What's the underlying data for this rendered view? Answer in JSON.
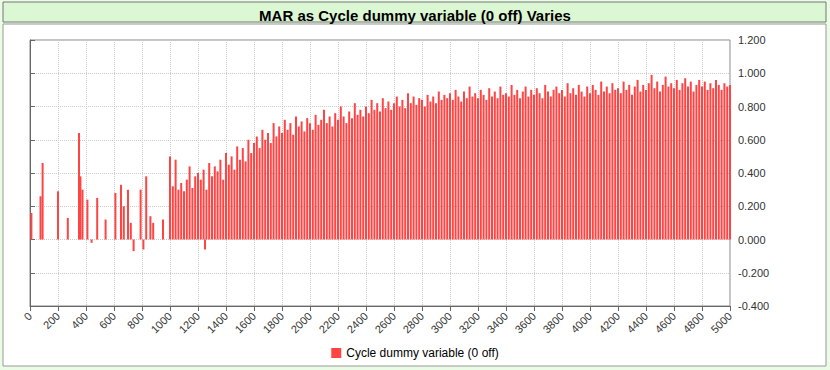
{
  "chart_data": {
    "type": "bar",
    "title": "MAR as Cycle dummy variable (0 off) Varies",
    "legend": "bottom",
    "grid": true,
    "xlim": [
      0,
      5000
    ],
    "xticks": [
      0,
      200,
      400,
      600,
      800,
      1000,
      1200,
      1400,
      1600,
      1800,
      2000,
      2200,
      2400,
      2600,
      2800,
      3000,
      3200,
      3400,
      3600,
      3800,
      4000,
      4200,
      4400,
      4600,
      4800,
      5000
    ],
    "ylim": [
      -0.4,
      1.2
    ],
    "yticks": [
      {
        "value": -0.4,
        "label": "-0.400"
      },
      {
        "value": -0.2,
        "label": "-0.200"
      },
      {
        "value": 0,
        "label": "0.000"
      },
      {
        "value": 0.2,
        "label": "0.200"
      },
      {
        "value": 0.4,
        "label": "0.400"
      },
      {
        "value": 0.6,
        "label": "0.600"
      },
      {
        "value": 0.8,
        "label": "0.800"
      },
      {
        "value": 1.0,
        "label": "1.000"
      },
      {
        "value": 1.2,
        "label": "1.200"
      }
    ],
    "series": [
      {
        "name": "Cycle dummy variable (0 off)",
        "color": "#ff4444",
        "x": [
          10,
          75,
          90,
          200,
          270,
          350,
          360,
          375,
          410,
          440,
          480,
          540,
          610,
          650,
          670,
          700,
          720,
          740,
          790,
          810,
          830,
          860,
          880,
          950,
          1000,
          1020,
          1040,
          1060,
          1080,
          1100,
          1120,
          1140,
          1160,
          1180,
          1200,
          1220,
          1240,
          1250,
          1260,
          1280,
          1300,
          1320,
          1340,
          1360,
          1380,
          1400,
          1420,
          1440,
          1460,
          1480,
          1500,
          1520,
          1540,
          1560,
          1580,
          1600,
          1620,
          1640,
          1660,
          1680,
          1700,
          1720,
          1740,
          1760,
          1780,
          1800,
          1820,
          1840,
          1860,
          1880,
          1900,
          1920,
          1940,
          1960,
          1980,
          2000,
          2020,
          2040,
          2060,
          2080,
          2100,
          2120,
          2140,
          2160,
          2180,
          2200,
          2220,
          2240,
          2260,
          2280,
          2300,
          2320,
          2340,
          2360,
          2380,
          2400,
          2420,
          2440,
          2460,
          2480,
          2500,
          2520,
          2540,
          2560,
          2580,
          2600,
          2620,
          2640,
          2660,
          2680,
          2700,
          2720,
          2740,
          2760,
          2780,
          2800,
          2820,
          2840,
          2860,
          2880,
          2900,
          2920,
          2940,
          2960,
          2980,
          3000,
          3020,
          3040,
          3060,
          3080,
          3100,
          3120,
          3140,
          3160,
          3180,
          3200,
          3220,
          3240,
          3260,
          3280,
          3300,
          3320,
          3340,
          3360,
          3380,
          3400,
          3420,
          3440,
          3460,
          3480,
          3500,
          3520,
          3540,
          3560,
          3580,
          3600,
          3620,
          3640,
          3660,
          3680,
          3700,
          3720,
          3740,
          3760,
          3780,
          3800,
          3820,
          3840,
          3860,
          3880,
          3900,
          3920,
          3940,
          3960,
          3980,
          4000,
          4020,
          4040,
          4060,
          4080,
          4100,
          4120,
          4140,
          4160,
          4180,
          4200,
          4220,
          4240,
          4260,
          4280,
          4300,
          4320,
          4340,
          4360,
          4380,
          4400,
          4420,
          4440,
          4460,
          4480,
          4500,
          4520,
          4540,
          4560,
          4580,
          4600,
          4620,
          4640,
          4660,
          4680,
          4700,
          4720,
          4740,
          4760,
          4780,
          4800,
          4820,
          4840,
          4860,
          4880,
          4900,
          4920,
          4940,
          4960,
          4980,
          5000
        ],
        "values": [
          0.16,
          0.26,
          0.46,
          0.29,
          0.13,
          0.64,
          0.38,
          0.3,
          0.24,
          -0.02,
          0.25,
          0.12,
          0.28,
          0.33,
          0.2,
          0.3,
          0.1,
          -0.07,
          0.3,
          -0.06,
          0.38,
          0.14,
          0.1,
          0.12,
          0.5,
          0.32,
          0.48,
          0.3,
          0.34,
          0.29,
          0.36,
          0.44,
          0.31,
          0.38,
          0.4,
          0.36,
          0.42,
          -0.06,
          0.3,
          0.46,
          0.38,
          0.44,
          0.41,
          0.48,
          0.36,
          0.52,
          0.45,
          0.5,
          0.42,
          0.56,
          0.48,
          0.55,
          0.47,
          0.6,
          0.52,
          0.58,
          0.62,
          0.55,
          0.66,
          0.6,
          0.64,
          0.58,
          0.7,
          0.62,
          0.68,
          0.64,
          0.72,
          0.66,
          0.7,
          0.63,
          0.74,
          0.68,
          0.71,
          0.65,
          0.73,
          0.7,
          0.66,
          0.75,
          0.69,
          0.72,
          0.78,
          0.7,
          0.74,
          0.68,
          0.76,
          0.72,
          0.8,
          0.74,
          0.7,
          0.77,
          0.73,
          0.82,
          0.75,
          0.78,
          0.74,
          0.8,
          0.76,
          0.84,
          0.78,
          0.82,
          0.77,
          0.85,
          0.79,
          0.83,
          0.78,
          0.82,
          0.86,
          0.8,
          0.84,
          0.79,
          0.88,
          0.82,
          0.86,
          0.81,
          0.85,
          0.84,
          0.8,
          0.87,
          0.83,
          0.86,
          0.82,
          0.89,
          0.84,
          0.87,
          0.85,
          0.88,
          0.84,
          0.9,
          0.86,
          0.83,
          0.89,
          0.85,
          0.92,
          0.86,
          0.88,
          0.85,
          0.9,
          0.87,
          0.84,
          0.91,
          0.86,
          0.89,
          0.85,
          0.92,
          0.87,
          0.88,
          0.86,
          0.93,
          0.87,
          0.9,
          0.85,
          0.89,
          0.92,
          0.86,
          0.9,
          0.87,
          0.91,
          0.88,
          0.85,
          0.93,
          0.89,
          0.86,
          0.9,
          0.92,
          0.88,
          0.9,
          0.86,
          0.94,
          0.88,
          0.91,
          0.87,
          0.93,
          0.89,
          0.86,
          0.92,
          0.88,
          0.93,
          0.9,
          0.87,
          0.95,
          0.89,
          0.92,
          0.88,
          0.94,
          0.9,
          0.91,
          0.88,
          0.95,
          0.9,
          0.93,
          0.87,
          0.92,
          0.96,
          0.89,
          0.93,
          0.9,
          0.94,
          0.99,
          0.91,
          0.95,
          0.89,
          0.93,
          0.98,
          0.92,
          0.94,
          0.91,
          0.96,
          0.9,
          0.94,
          0.97,
          0.92,
          0.95,
          0.89,
          0.93,
          0.96,
          0.92,
          0.95,
          0.9,
          0.94,
          0.91,
          0.96,
          0.93,
          0.9,
          0.94,
          0.92,
          0.93
        ]
      }
    ]
  }
}
